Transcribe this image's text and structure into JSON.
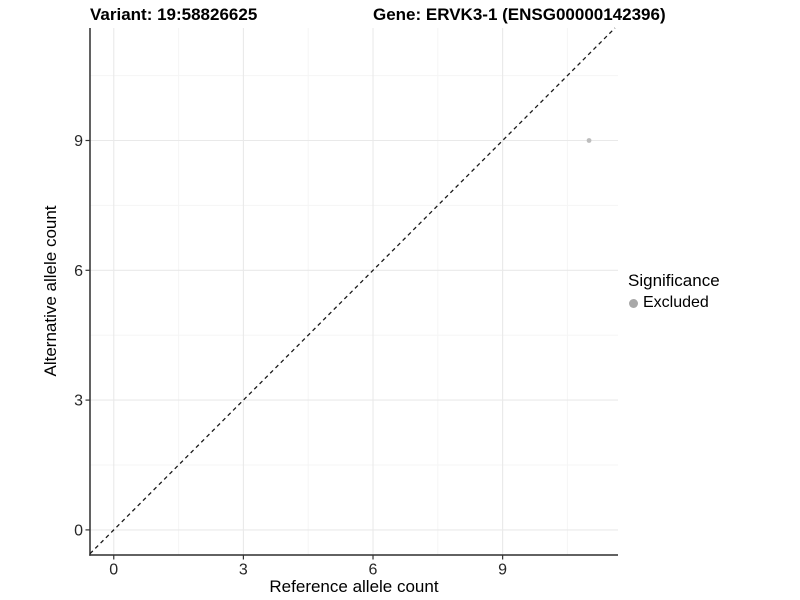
{
  "chart_data": {
    "type": "scatter",
    "title_left": "Variant: 19:58826625",
    "title_right": "Gene: ERVK3-1 (ENSG00000142396)",
    "xlabel": "Reference allele count",
    "ylabel": "Alternative allele count",
    "xlim": [
      -0.55,
      11.67
    ],
    "ylim": [
      -0.58,
      11.6
    ],
    "x_ticks": [
      0,
      3,
      6,
      9
    ],
    "y_ticks": [
      0,
      3,
      6,
      9
    ],
    "x_minor_ticks": [
      1.5,
      4.5,
      7.5,
      10.5
    ],
    "y_minor_ticks": [
      1.5,
      4.5,
      7.5,
      10.5
    ],
    "grid": true,
    "series": [
      {
        "name": "Excluded",
        "color": "#bdbdbd",
        "points": [
          {
            "x": 11,
            "y": 9
          }
        ]
      }
    ],
    "reference_line": {
      "equation": "y = x",
      "style": "dashed",
      "color": "#1a1a1a"
    },
    "legend": {
      "title": "Significance",
      "position": "right",
      "items": [
        {
          "label": "Excluded",
          "marker_color": "#a8a8a8"
        }
      ]
    },
    "colors": {
      "grid_major": "#e9e9e9",
      "grid_minor": "#f5f5f5",
      "axis_line": "#2f2f2f",
      "tick_mark": "#333333",
      "point": "#bdbdbd"
    }
  }
}
